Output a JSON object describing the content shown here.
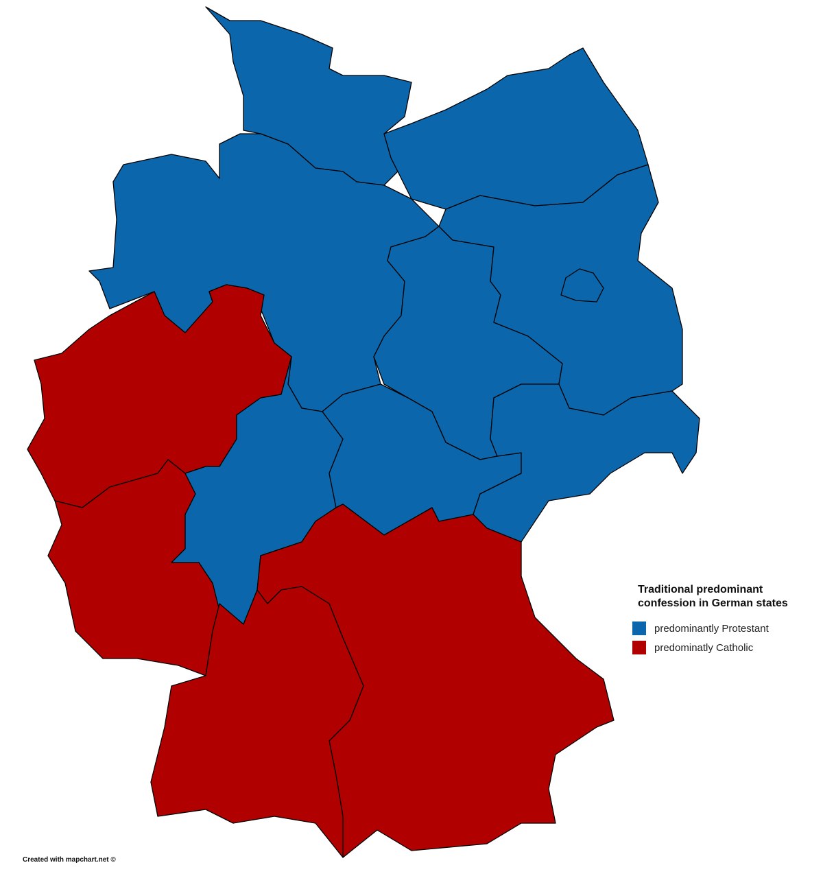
{
  "legend": {
    "title": "Traditional predominant confession in German states",
    "items": [
      {
        "label": "predominantly Protestant",
        "color": "#0b66ab"
      },
      {
        "label": "predominatly Catholic",
        "color": "#b00000"
      }
    ]
  },
  "colors": {
    "protestant": "#0b66ab",
    "catholic": "#b00000",
    "border": "#000000"
  },
  "footer": "Created with mapchart.net ©"
}
